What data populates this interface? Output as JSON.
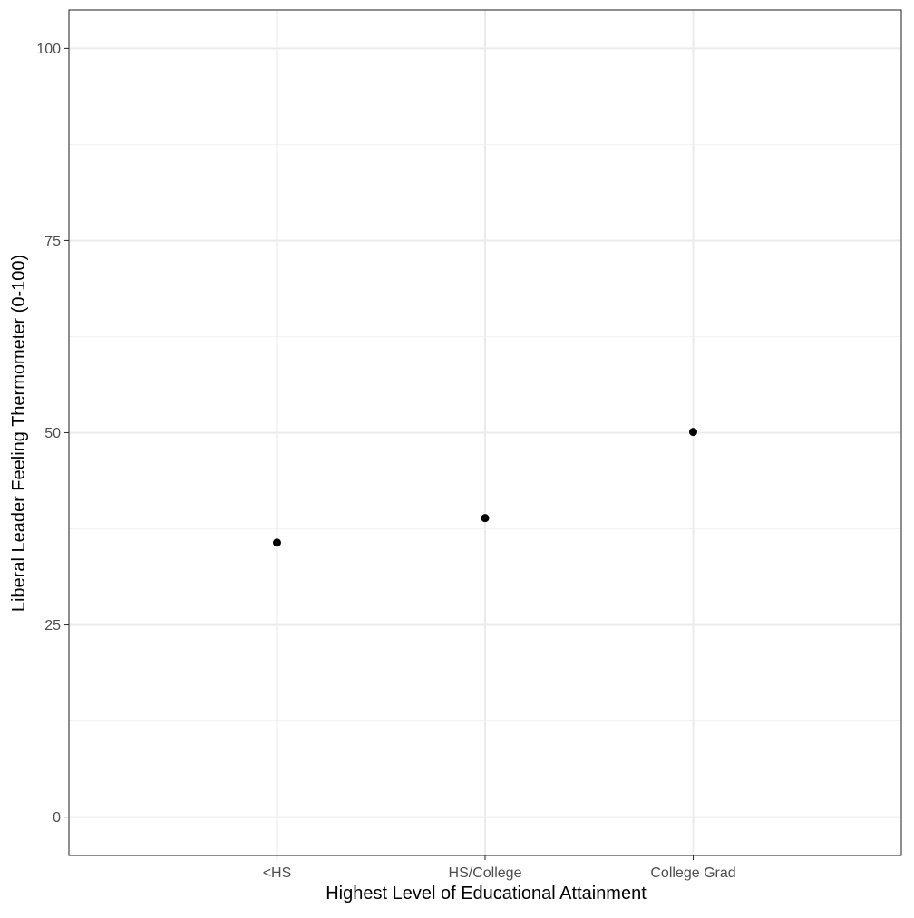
{
  "chart_data": {
    "type": "scatter",
    "title": "",
    "xlabel": "Highest Level of Educational Attainment",
    "ylabel": "Liberal Leader Feeling Thermometer (0-100)",
    "categories": [
      "<HS",
      "HS/College",
      "College Grad"
    ],
    "values": [
      35.7,
      38.9,
      50.1
    ],
    "ylim": [
      -5,
      105
    ],
    "y_ticks": [
      0,
      25,
      50,
      75,
      100
    ],
    "y_tick_labels": [
      "0",
      "25",
      "50",
      "75",
      "100"
    ],
    "y_minor_ticks": [
      12.5,
      37.5,
      62.5,
      87.5
    ],
    "grid": true,
    "legend": "none",
    "colors": {
      "point": "#000000",
      "grid_major": "#ebebeb",
      "grid_minor": "#f2f2f2",
      "panel_border": "#333333",
      "tick_text": "#4d4d4d"
    }
  }
}
